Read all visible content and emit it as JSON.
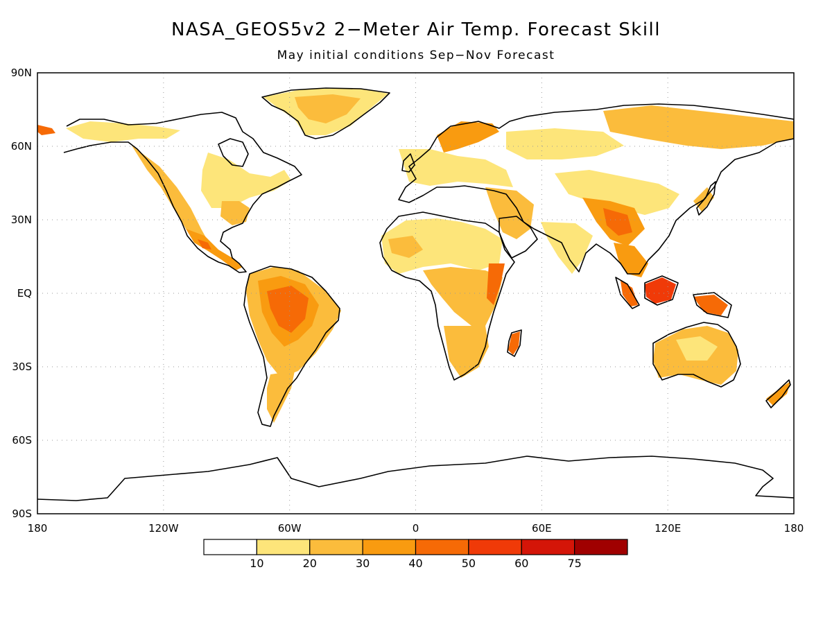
{
  "title": "NASA_GEOS5v2 2−Meter Air Temp. Forecast Skill",
  "subtitle": "May initial conditions  Sep−Nov Forecast",
  "map": {
    "projection": "equirectangular",
    "lon_range": [
      -180,
      180
    ],
    "lat_range": [
      -90,
      90
    ],
    "grid": true,
    "lat_labels": [
      "90N",
      "60N",
      "30N",
      "EQ",
      "30S",
      "60S",
      "90S"
    ],
    "lat_values": [
      90,
      60,
      30,
      0,
      -30,
      -60,
      -90
    ],
    "lon_labels": [
      "180",
      "120W",
      "60W",
      "0",
      "60E",
      "120E",
      "180"
    ],
    "lon_values": [
      -180,
      -120,
      -60,
      0,
      60,
      120,
      180
    ]
  },
  "colorbar": {
    "position": "bottom",
    "tick_labels": [
      "10",
      "20",
      "30",
      "40",
      "50",
      "60",
      "75"
    ],
    "colors": [
      "#ffffff",
      "#fde57a",
      "#fbbc3c",
      "#f99b10",
      "#f66a06",
      "#f03a08",
      "#d41508",
      "#a00000"
    ]
  },
  "shading_colors": {
    "light": "#fde57a",
    "mid": "#fbbc3c",
    "orange": "#f99b10",
    "dark_orange": "#f66a06",
    "red": "#f03a08"
  }
}
